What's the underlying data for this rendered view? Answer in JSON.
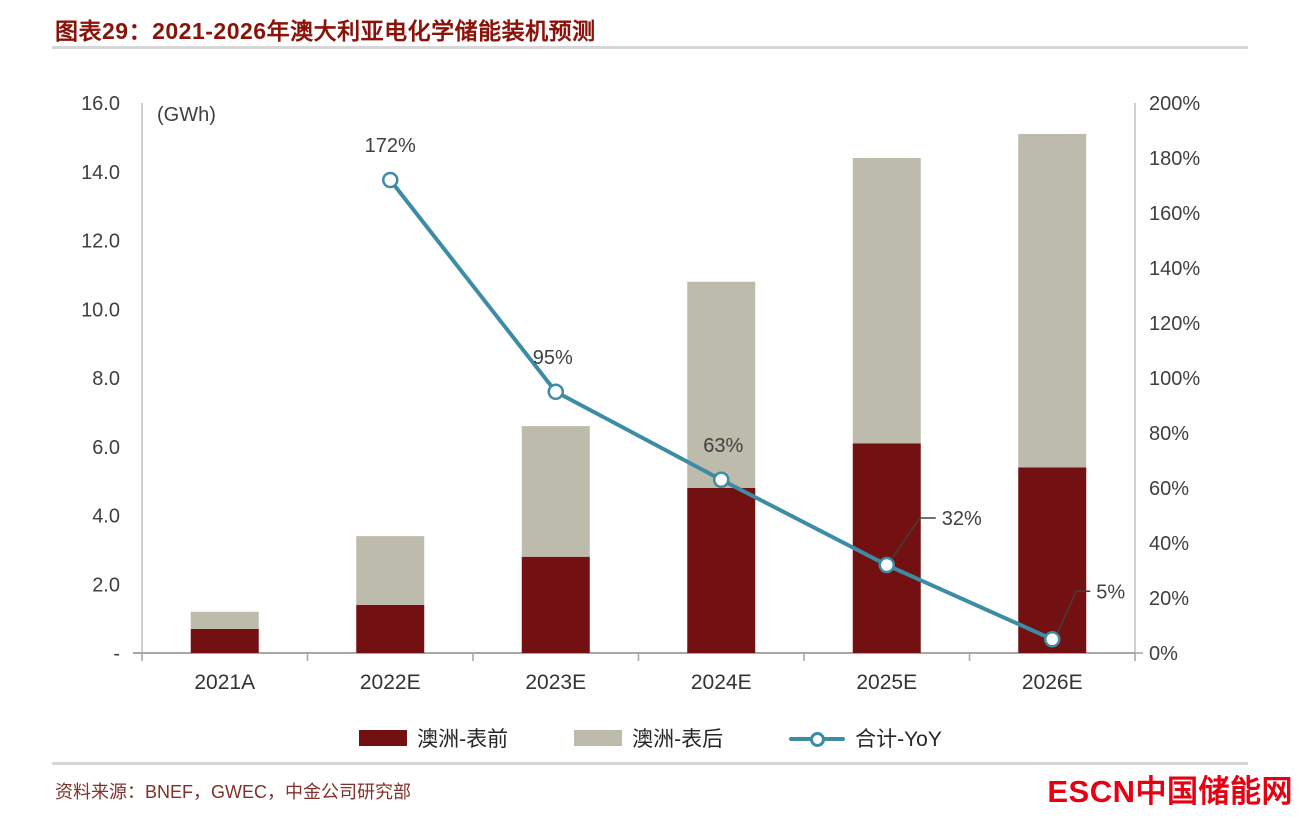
{
  "page": {
    "title": "图表29：2021-2026年澳大利亚电化学储能装机预测",
    "source": "资料来源：BNEF，GWEC，中金公司研究部",
    "logo": {
      "prefix": "ESCN",
      "name": "中国储能网"
    }
  },
  "colors": {
    "title_red": "#8B1209",
    "source_red": "#82302A",
    "logo_red": "#E60012",
    "bar_front": "#731011",
    "bar_behind": "#BDBBAB",
    "line_teal": "#3D8CA6",
    "axis_text": "#3F3F3F",
    "axis_line": "#A8A8A8"
  },
  "chart_data": {
    "type": "bar+line",
    "title": "2021-2026年澳大利亚电化学储能装机预测",
    "unit_label": "(GWh)",
    "categories": [
      "2021A",
      "2022E",
      "2023E",
      "2024E",
      "2025E",
      "2026E"
    ],
    "series": [
      {
        "name": "澳洲-表前",
        "type": "bar",
        "stack": true,
        "axis": "left",
        "color": "#731011",
        "values": [
          0.7,
          1.4,
          2.8,
          4.8,
          6.1,
          5.4
        ]
      },
      {
        "name": "澳洲-表后",
        "type": "bar",
        "stack": true,
        "axis": "left",
        "color": "#BDBBAB",
        "values": [
          0.5,
          2.0,
          3.8,
          6.0,
          8.3,
          9.7
        ]
      },
      {
        "name": "合计-YoY",
        "type": "line",
        "axis": "right",
        "color": "#3D8CA6",
        "values": [
          null,
          172,
          95,
          63,
          32,
          5
        ],
        "labels": [
          "",
          "172%",
          "95%",
          "63%",
          "32%",
          "5%"
        ]
      }
    ],
    "stacked_totals": [
      1.2,
      3.4,
      6.6,
      10.8,
      14.4,
      15.1
    ],
    "left_axis": {
      "min": 0,
      "max": 16,
      "step": 2,
      "tick_labels": [
        "-",
        "2.0",
        "4.0",
        "6.0",
        "8.0",
        "10.0",
        "12.0",
        "14.0",
        "16.0"
      ]
    },
    "right_axis": {
      "min": 0,
      "max": 200,
      "step": 20,
      "tick_labels": [
        "0%",
        "20%",
        "40%",
        "60%",
        "80%",
        "100%",
        "120%",
        "140%",
        "160%",
        "180%",
        "200%"
      ]
    },
    "grid": "off",
    "legend_position": "bottom"
  }
}
